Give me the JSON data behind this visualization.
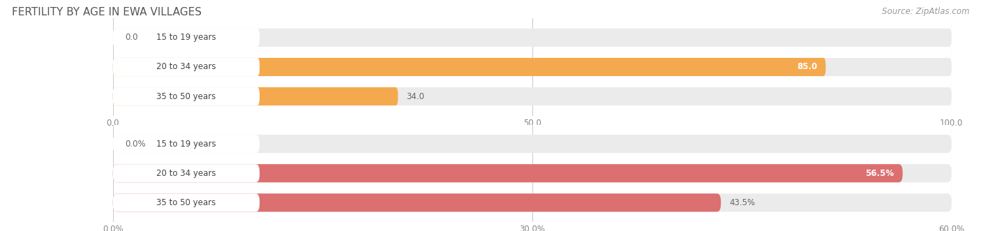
{
  "title": "FERTILITY BY AGE IN EWA VILLAGES",
  "source": "Source: ZipAtlas.com",
  "top_chart": {
    "categories": [
      "15 to 19 years",
      "20 to 34 years",
      "35 to 50 years"
    ],
    "values": [
      0.0,
      85.0,
      34.0
    ],
    "xlim": [
      0,
      100
    ],
    "xticks": [
      0.0,
      50.0,
      100.0
    ],
    "xtick_labels": [
      "0.0",
      "50.0",
      "100.0"
    ],
    "bar_color": "#F5A94E",
    "bar_color_light": "#F5C89A",
    "track_color": "#EBEBEB",
    "bar_height": 0.62
  },
  "bottom_chart": {
    "categories": [
      "15 to 19 years",
      "20 to 34 years",
      "35 to 50 years"
    ],
    "values": [
      0.0,
      56.5,
      43.5
    ],
    "xlim": [
      0,
      60
    ],
    "xticks": [
      0.0,
      30.0,
      60.0
    ],
    "xtick_labels": [
      "0.0%",
      "30.0%",
      "60.0%"
    ],
    "bar_color": "#DC7070",
    "bar_color_light": "#ECA8A8",
    "track_color": "#EBEBEB",
    "bar_height": 0.62
  },
  "fig_bg": "#ffffff",
  "title_fontsize": 11,
  "tick_fontsize": 8.5,
  "source_fontsize": 8.5,
  "cat_fontsize": 8.5,
  "val_fontsize": 8.5
}
